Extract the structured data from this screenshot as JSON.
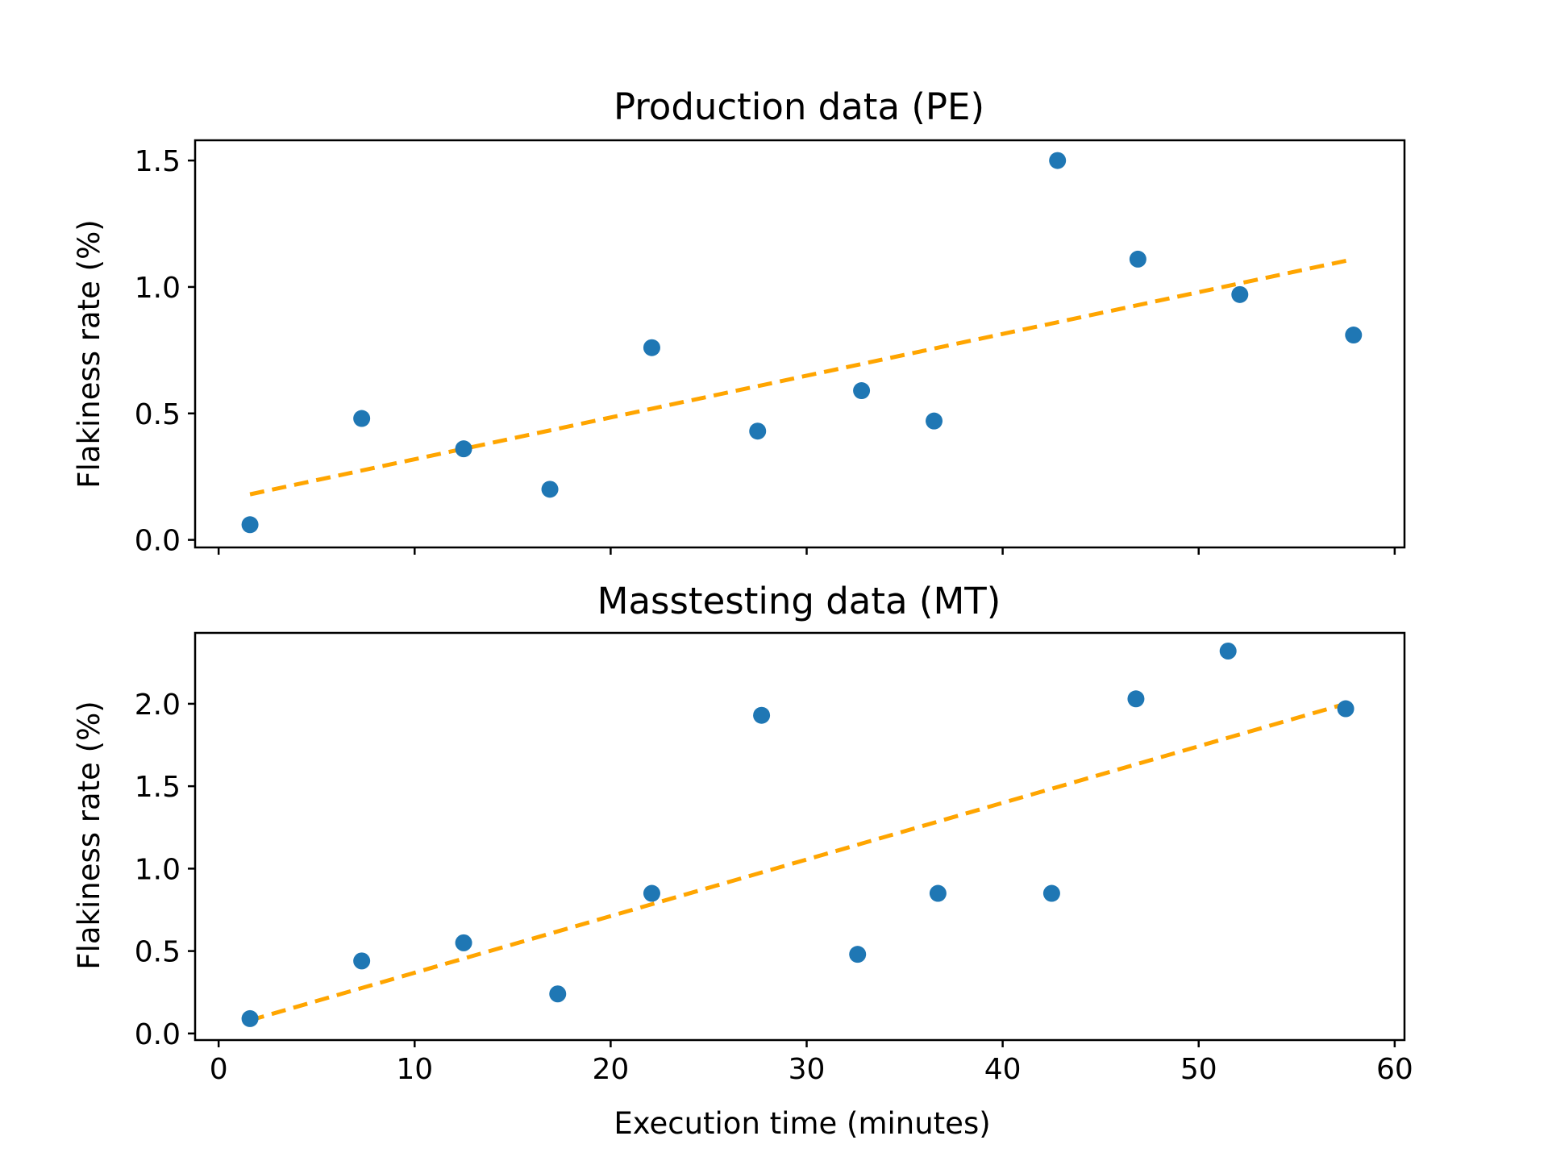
{
  "chart_data": [
    {
      "type": "scatter",
      "title": "Production data (PE)",
      "xlabel": "",
      "ylabel": "Flakiness rate (%)",
      "xlim": [
        -1.2,
        60.5
      ],
      "ylim": [
        -0.03,
        1.58
      ],
      "x_ticks": [
        0,
        10,
        20,
        30,
        40,
        50,
        60
      ],
      "x_tick_labels_visible": false,
      "y_ticks": [
        0.0,
        0.5,
        1.0,
        1.5
      ],
      "y_tick_labels": [
        "0.0",
        "0.5",
        "1.0",
        "1.5"
      ],
      "series": [
        {
          "name": "observations",
          "kind": "points",
          "color": "#1f77b4",
          "x": [
            1.6,
            7.3,
            12.5,
            16.9,
            22.1,
            27.5,
            32.8,
            36.5,
            42.8,
            46.9,
            52.1,
            57.9
          ],
          "y": [
            0.06,
            0.48,
            0.36,
            0.2,
            0.76,
            0.43,
            0.59,
            0.47,
            1.5,
            1.11,
            0.97,
            0.81
          ]
        },
        {
          "name": "trend",
          "kind": "dashed-line",
          "color": "#ffa500",
          "x": [
            1.6,
            57.9
          ],
          "y": [
            0.18,
            1.11
          ]
        }
      ]
    },
    {
      "type": "scatter",
      "title": "Masstesting data (MT)",
      "xlabel": "Execution time (minutes)",
      "ylabel": "Flakiness rate (%)",
      "xlim": [
        -1.2,
        60.5
      ],
      "ylim": [
        -0.04,
        2.43
      ],
      "x_ticks": [
        0,
        10,
        20,
        30,
        40,
        50,
        60
      ],
      "x_tick_labels": [
        "0",
        "10",
        "20",
        "30",
        "40",
        "50",
        "60"
      ],
      "y_ticks": [
        0.0,
        0.5,
        1.0,
        1.5,
        2.0
      ],
      "y_tick_labels": [
        "0.0",
        "0.5",
        "1.0",
        "1.5",
        "2.0"
      ],
      "series": [
        {
          "name": "observations",
          "kind": "points",
          "color": "#1f77b4",
          "x": [
            1.6,
            7.3,
            12.5,
            17.3,
            22.1,
            27.7,
            32.6,
            36.7,
            42.5,
            46.8,
            51.5,
            57.5
          ],
          "y": [
            0.09,
            0.44,
            0.55,
            0.24,
            0.85,
            1.93,
            0.48,
            0.85,
            0.85,
            2.03,
            2.32,
            1.97
          ]
        },
        {
          "name": "trend",
          "kind": "dashed-line",
          "color": "#ffa500",
          "x": [
            1.6,
            57.5
          ],
          "y": [
            0.08,
            2.0
          ]
        }
      ]
    }
  ]
}
